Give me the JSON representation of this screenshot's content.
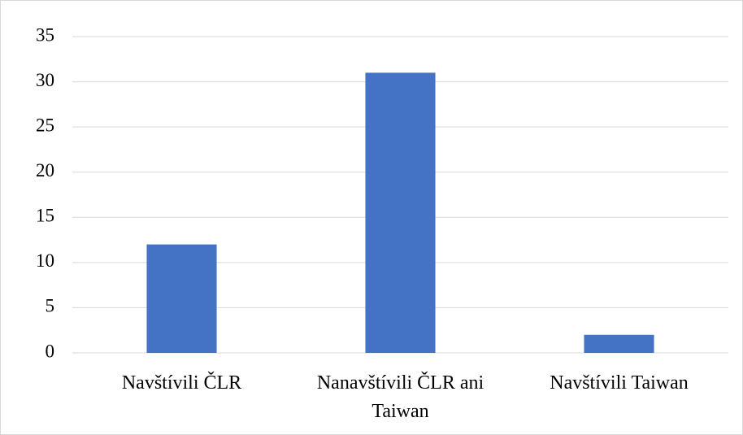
{
  "chart_data": {
    "type": "bar",
    "categories": [
      "Navštívili ČLR",
      "Nanavštívili ČLR ani Taiwan",
      "Navštívili Taiwan"
    ],
    "values": [
      12,
      31,
      2
    ],
    "color": "#4472c4",
    "ylim": [
      0,
      35
    ],
    "yticks": [
      0,
      5,
      10,
      15,
      20,
      25,
      30,
      35
    ],
    "grid": true
  }
}
